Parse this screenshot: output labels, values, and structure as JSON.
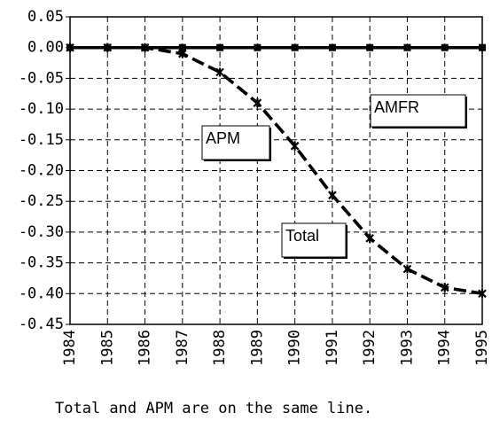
{
  "chart_data": {
    "type": "line",
    "x": [
      1984,
      1985,
      1986,
      1987,
      1988,
      1989,
      1990,
      1991,
      1992,
      1993,
      1994,
      1995
    ],
    "series": [
      {
        "name": "AMFR",
        "color": "#000000",
        "values": [
          0,
          0,
          0,
          0,
          0,
          0,
          0,
          0,
          0,
          0,
          0,
          0
        ]
      },
      {
        "name": "APM",
        "color": "#000000",
        "values": [
          0,
          0,
          0,
          -0.01,
          -0.04,
          -0.09,
          -0.16,
          -0.24,
          -0.31,
          -0.36,
          -0.39,
          -0.4
        ]
      },
      {
        "name": "Total",
        "color": "#000000",
        "values": [
          0,
          0,
          0,
          -0.01,
          -0.04,
          -0.09,
          -0.16,
          -0.24,
          -0.31,
          -0.36,
          -0.39,
          -0.4
        ]
      }
    ],
    "xlim": [
      1984,
      1995
    ],
    "xticks": [
      1984,
      1985,
      1986,
      1987,
      1988,
      1989,
      1990,
      1991,
      1992,
      1993,
      1994,
      1995
    ],
    "ylim": [
      -0.45,
      0.05
    ],
    "yticks": [
      0.05,
      {
        "value": 0,
        "label": "0.00"
      },
      -0.05,
      {
        "value": -0.1,
        "label": "-0.10"
      },
      -0.15,
      {
        "value": -0.2,
        "label": "-0.20"
      },
      -0.25,
      {
        "value": -0.3,
        "label": "-0.30"
      },
      -0.35,
      {
        "value": -0.4,
        "label": "-0.40"
      },
      -0.45
    ],
    "grid": true,
    "note": "Total and APM are on the same line."
  }
}
